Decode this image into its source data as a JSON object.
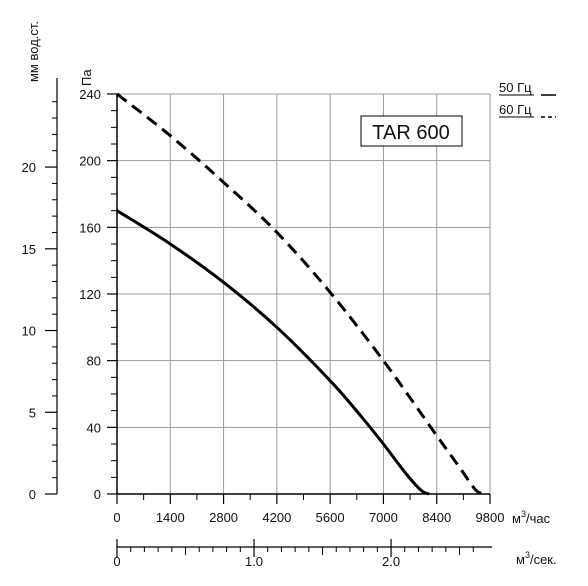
{
  "chart_data": {
    "type": "line",
    "title": "TAR 600",
    "x_axis": {
      "unit": "м³/час",
      "unit_base": "м",
      "unit_sup": "3",
      "unit_tail": "/час",
      "range": [
        0,
        9800
      ],
      "tick_labels": [
        "0",
        "1400",
        "2800",
        "4200",
        "5600",
        "7000",
        "8400",
        "9800"
      ]
    },
    "x_axis_secondary": {
      "unit": "м³/сек.",
      "unit_base": "м",
      "unit_sup": "3",
      "unit_tail": "/сек.",
      "tick_labels": [
        "0",
        "1.0",
        "2.0"
      ]
    },
    "y_axis": {
      "unit": "Па",
      "range": [
        0,
        240
      ],
      "tick_labels": [
        "0",
        "40",
        "80",
        "120",
        "160",
        "200",
        "240"
      ]
    },
    "y_axis_secondary": {
      "unit": "мм вод.ст.",
      "tick_labels": [
        "0",
        "5",
        "10",
        "15",
        "20"
      ]
    },
    "grid": true,
    "legend_position": "top-right",
    "series": [
      {
        "name": "50 Гц",
        "style": "solid",
        "color": "#000000",
        "x": [
          0,
          1400,
          2800,
          4200,
          5600,
          6400,
          7000,
          7600,
          8000,
          8200
        ],
        "y": [
          170,
          150,
          127,
          100,
          68,
          47,
          30,
          12,
          2,
          0
        ]
      },
      {
        "name": "60 Гц",
        "style": "dashed",
        "color": "#000000",
        "x": [
          0,
          1400,
          2800,
          4200,
          5600,
          7000,
          8400,
          9000,
          9400,
          9600
        ],
        "y": [
          240,
          215,
          187,
          157,
          121,
          80,
          35,
          16,
          3,
          0
        ]
      }
    ]
  }
}
